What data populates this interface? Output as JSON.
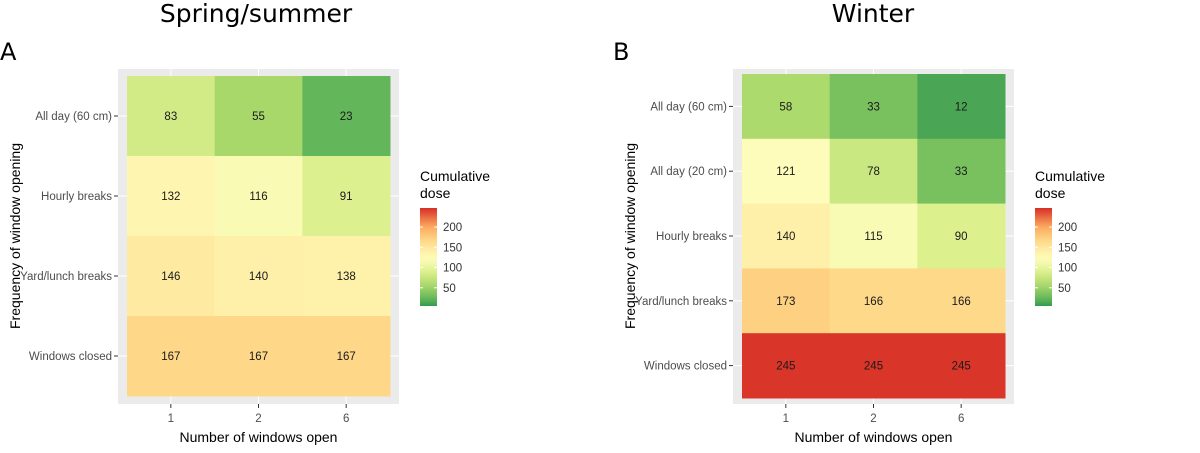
{
  "chart_data": [
    {
      "type": "heatmap",
      "panel_letter": "A",
      "title": "Spring/summer",
      "xlabel": "Number of windows open",
      "ylabel": "Frequency of window opening",
      "x": [
        "1",
        "2",
        "6"
      ],
      "y": [
        "All day (60 cm)",
        "Hourly breaks",
        "Yard/lunch breaks",
        "Windows closed"
      ],
      "values": [
        [
          83,
          55,
          23
        ],
        [
          132,
          116,
          91
        ],
        [
          146,
          140,
          138
        ],
        [
          167,
          167,
          167
        ]
      ],
      "legend": {
        "title_line1": "Cumulative",
        "title_line2": " dose",
        "ticks": [
          "50",
          "100",
          "150",
          "200"
        ],
        "tick_values": [
          50,
          100,
          150,
          200
        ],
        "range": [
          5,
          247
        ],
        "placement": "right"
      }
    },
    {
      "type": "heatmap",
      "panel_letter": "B",
      "title": "Winter",
      "xlabel": "Number of windows open",
      "ylabel": "Frequency of window opening",
      "x": [
        "1",
        "2",
        "6"
      ],
      "y": [
        "All day (60 cm)",
        "All day (20 cm)",
        "Hourly breaks",
        "Yard/lunch breaks",
        "Windows closed"
      ],
      "values": [
        [
          58,
          33,
          12
        ],
        [
          121,
          78,
          33
        ],
        [
          140,
          115,
          90
        ],
        [
          173,
          166,
          166
        ],
        [
          245,
          245,
          245
        ]
      ],
      "legend": {
        "title_line1": "Cumulative",
        "title_line2": " dose",
        "ticks": [
          "50",
          "100",
          "150",
          "200"
        ],
        "tick_values": [
          50,
          100,
          150,
          200
        ],
        "range": [
          5,
          247
        ],
        "placement": "right"
      }
    }
  ],
  "color_scale": [
    [
      5,
      "#2e9c4e"
    ],
    [
      12,
      "#4aa654"
    ],
    [
      23,
      "#64b65a"
    ],
    [
      55,
      "#a8d86a"
    ],
    [
      90,
      "#dcf08e"
    ],
    [
      120,
      "#fdfdbb"
    ],
    [
      140,
      "#fef0a8"
    ],
    [
      167,
      "#fed888"
    ],
    [
      200,
      "#fcaa5f"
    ],
    [
      247,
      "#d73027"
    ]
  ]
}
